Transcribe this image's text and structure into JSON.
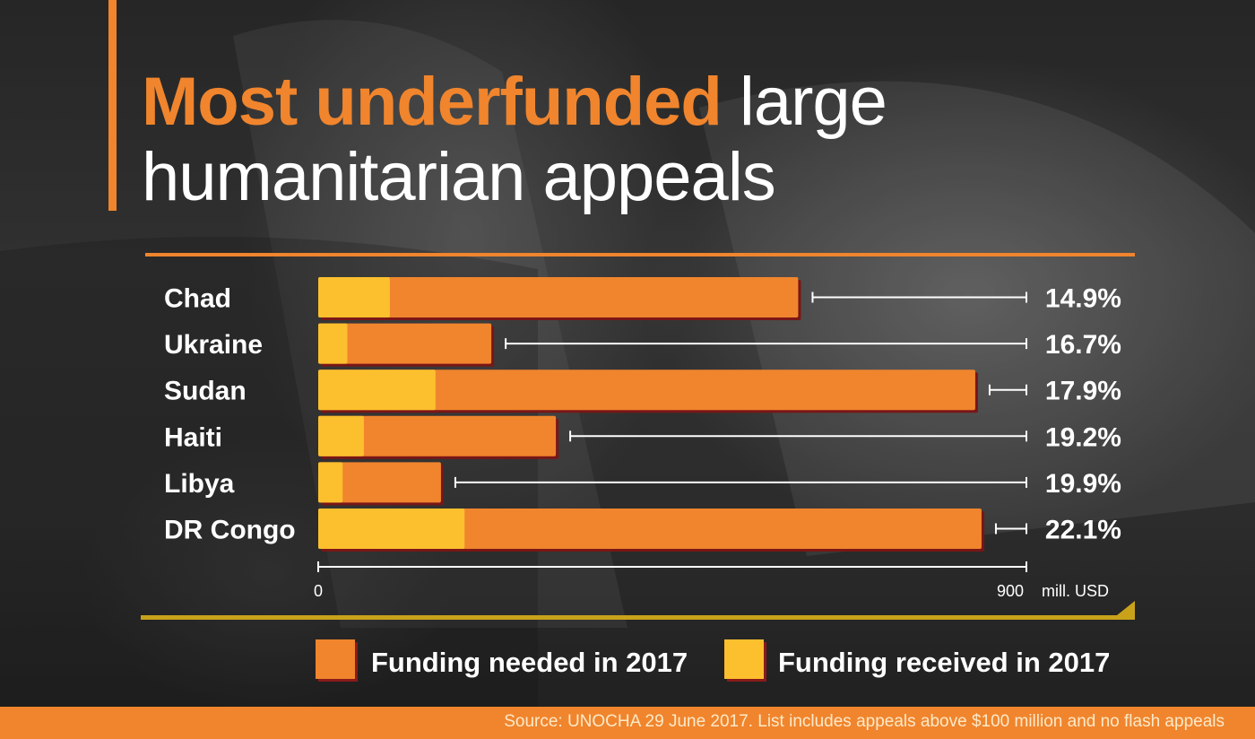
{
  "title": {
    "accent": "Most underfunded",
    "rest_line1": " large",
    "line2": "humanitarian appeals"
  },
  "chart_data": {
    "type": "bar",
    "orientation": "horizontal",
    "categories": [
      "Chad",
      "Ukraine",
      "Sudan",
      "Haiti",
      "Libya",
      "DR Congo"
    ],
    "series": [
      {
        "name": "Funding needed in 2017",
        "values": [
          610,
          220,
          835,
          302,
          156,
          843
        ],
        "color": "#f0852d"
      },
      {
        "name": "Funding received in 2017",
        "values": [
          91,
          37,
          149,
          58,
          31,
          186
        ],
        "color": "#fcc02e"
      }
    ],
    "percent_labels": [
      "14.9%",
      "16.7%",
      "17.9%",
      "19.2%",
      "19.9%",
      "22.1%"
    ],
    "xlim": [
      0,
      900
    ],
    "x_tick_labels": [
      "0",
      "900"
    ],
    "x_unit_label": "mill. USD",
    "legend_position": "bottom",
    "grid": false
  },
  "legend": {
    "needed_label": "Funding needed in 2017",
    "received_label": "Funding received in 2017"
  },
  "footer": {
    "source": "Source: UNOCHA 29 June 2017. List includes appeals above $100 million and no flash appeals"
  },
  "colors": {
    "accent": "#f0852d",
    "received": "#fcc02e",
    "text": "#ffffff"
  }
}
